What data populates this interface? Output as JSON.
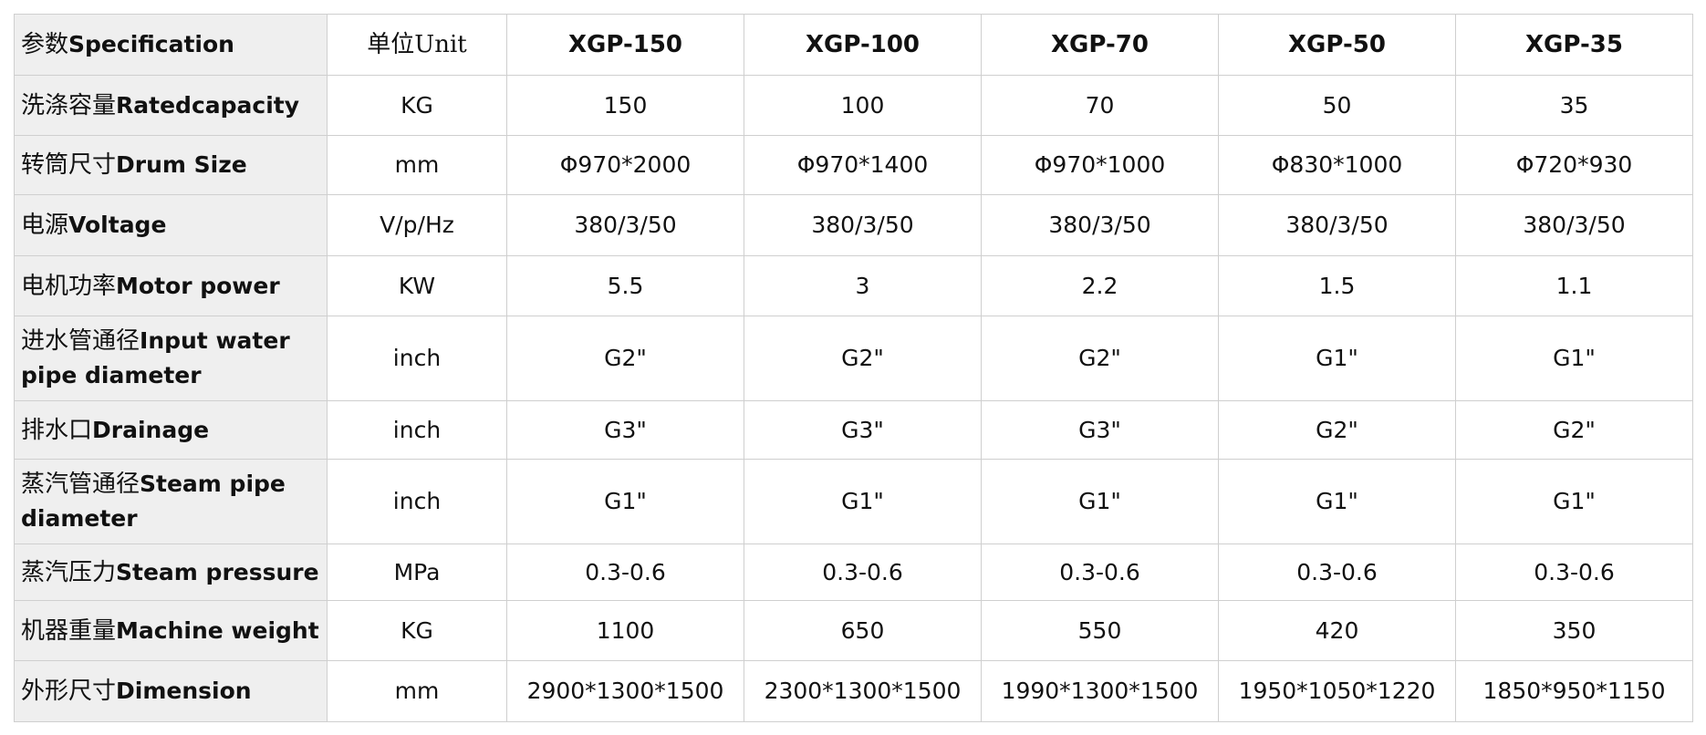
{
  "table": {
    "header": {
      "spec_cn": "参数",
      "spec_en": "Specification",
      "unit_cn": "单位",
      "unit_en": "Unit",
      "models": [
        "XGP-150",
        "XGP-100",
        "XGP-70",
        "XGP-50",
        "XGP-35"
      ]
    },
    "rows": [
      {
        "name_cn": "洗涤容量",
        "name_en": "Ratedcapacity",
        "unit": "KG",
        "values": [
          "150",
          "100",
          "70",
          "50",
          "35"
        ]
      },
      {
        "name_cn": "转筒尺寸",
        "name_en": "Drum Size",
        "unit": "mm",
        "values": [
          "Φ970*2000",
          "Φ970*1400",
          "Φ970*1000",
          "Φ830*1000",
          "Φ720*930"
        ]
      },
      {
        "name_cn": "电源",
        "name_en": "Voltage",
        "unit": "V/p/Hz",
        "values": [
          "380/3/50",
          "380/3/50",
          "380/3/50",
          "380/3/50",
          "380/3/50"
        ]
      },
      {
        "name_cn": "电机功率",
        "name_en": "Motor power",
        "unit": "KW",
        "values": [
          "5.5",
          "3",
          "2.2",
          "1.5",
          "1.1"
        ]
      },
      {
        "name_cn": "进水管通径",
        "name_en": "Input water pipe diameter",
        "unit": "inch",
        "values": [
          "G2\"",
          "G2\"",
          "G2\"",
          "G1\"",
          "G1\""
        ]
      },
      {
        "name_cn": "排水口",
        "name_en": "Drainage",
        "unit": "inch",
        "values": [
          "G3\"",
          "G3\"",
          "G3\"",
          "G2\"",
          "G2\""
        ]
      },
      {
        "name_cn": "蒸汽管通径",
        "name_en": "Steam pipe diameter",
        "unit": "inch",
        "values": [
          "G1\"",
          "G1\"",
          "G1\"",
          "G1\"",
          "G1\""
        ]
      },
      {
        "name_cn": "蒸汽压力",
        "name_en": "Steam pressure",
        "unit": "MPa",
        "values": [
          "0.3-0.6",
          "0.3-0.6",
          "0.3-0.6",
          "0.3-0.6",
          "0.3-0.6"
        ]
      },
      {
        "name_cn": "机器重量",
        "name_en": "Machine weight",
        "unit": "KG",
        "values": [
          "1100",
          "650",
          "550",
          "420",
          "350"
        ]
      },
      {
        "name_cn": "外形尺寸",
        "name_en": "Dimension",
        "unit": "mm",
        "values": [
          "2900*1300*1500",
          "2300*1300*1500",
          "1990*1300*1500",
          "1950*1050*1220",
          "1850*950*1150"
        ]
      }
    ]
  }
}
